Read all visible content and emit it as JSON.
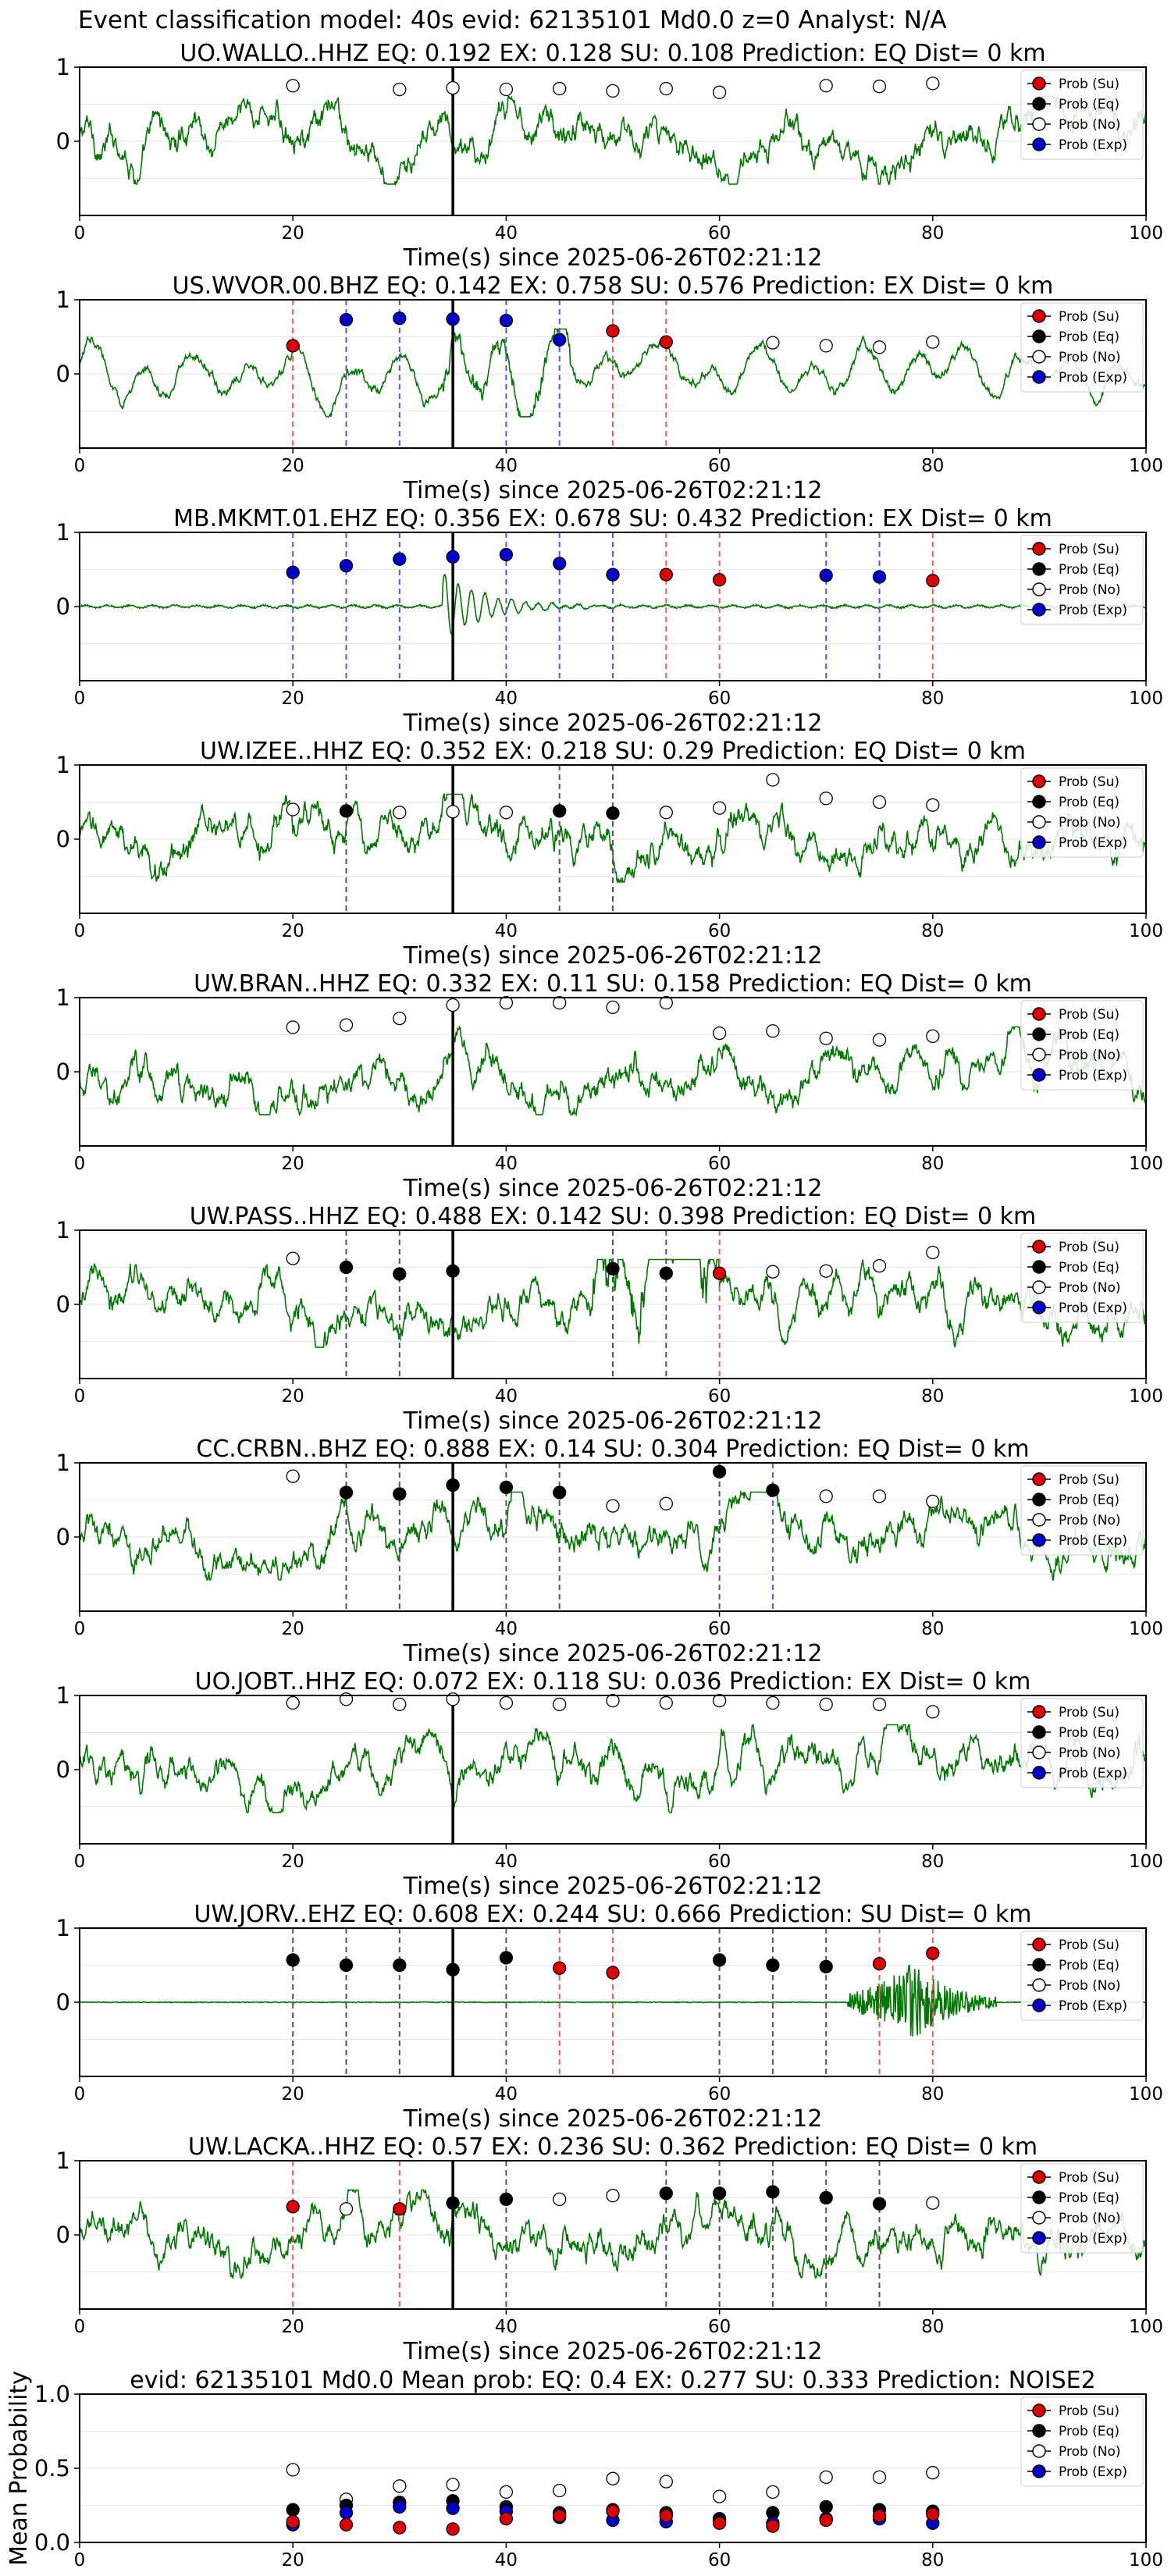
{
  "suptitle": "Event classification model: 40s evid: 62135101 Md0.0 z=0 Analyst: N/A",
  "legend_labels": [
    "Prob (Su)",
    "Prob (Eq)",
    "Prob (No)",
    "Prob (Exp)"
  ],
  "colors": {
    "su": "#dd0000",
    "eq": "#000000",
    "no": "#ffffff",
    "exp": "#0000cc",
    "waveform": "#007700",
    "vline_su": "#ff5555",
    "vline_exp": "#5555ff",
    "vline_eq": "#555555"
  },
  "xlabel": "Time(s) since 2025-06-26T02:21:12",
  "chart_data": [
    {
      "type": "line",
      "station": "UO.WALLO..HHZ",
      "title": "UO.WALLO..HHZ   EQ: 0.192  EX: 0.128  SU: 0.108   Prediction: EQ    Dist= 0 km",
      "xlabel": "Time(s) since 2025-06-26T02:21:12",
      "xlim": [
        0,
        100
      ],
      "ylim": [
        -1,
        1
      ],
      "xticks": [
        0,
        20,
        40,
        60,
        80,
        100
      ],
      "yticks": [
        0,
        1
      ],
      "arrival_s": 35,
      "waveform": "noise",
      "points": [
        [
          20,
          0.75,
          "no"
        ],
        [
          30,
          0.7,
          "no"
        ],
        [
          35,
          0.72,
          "no"
        ],
        [
          40,
          0.7,
          "no"
        ],
        [
          45,
          0.71,
          "no"
        ],
        [
          50,
          0.68,
          "no"
        ],
        [
          55,
          0.71,
          "no"
        ],
        [
          60,
          0.66,
          "no"
        ],
        [
          70,
          0.75,
          "no"
        ],
        [
          75,
          0.74,
          "no"
        ],
        [
          80,
          0.78,
          "no"
        ]
      ],
      "vlines": []
    },
    {
      "type": "line",
      "station": "US.WVOR.00.BHZ",
      "title": "US.WVOR.00.BHZ   EQ: 0.142  EX: 0.758  SU: 0.576   Prediction: EX    Dist= 0 km",
      "xlabel": "Time(s) since 2025-06-26T02:21:12",
      "xlim": [
        0,
        100
      ],
      "ylim": [
        -1,
        1
      ],
      "xticks": [
        0,
        20,
        40,
        60,
        80,
        100
      ],
      "yticks": [
        0,
        1
      ],
      "arrival_s": 35,
      "waveform": "smooth",
      "points": [
        [
          20,
          0.38,
          "su"
        ],
        [
          25,
          0.73,
          "exp"
        ],
        [
          30,
          0.75,
          "exp"
        ],
        [
          35,
          0.74,
          "exp"
        ],
        [
          40,
          0.72,
          "exp"
        ],
        [
          45,
          0.46,
          "exp"
        ],
        [
          50,
          0.58,
          "su"
        ],
        [
          55,
          0.43,
          "su"
        ],
        [
          65,
          0.42,
          "no"
        ],
        [
          70,
          0.38,
          "no"
        ],
        [
          75,
          0.36,
          "no"
        ],
        [
          80,
          0.43,
          "no"
        ]
      ],
      "vlines": [
        [
          20,
          "su"
        ],
        [
          25,
          "exp"
        ],
        [
          30,
          "exp"
        ],
        [
          35,
          "exp"
        ],
        [
          40,
          "exp"
        ],
        [
          45,
          "exp"
        ],
        [
          50,
          "su"
        ],
        [
          55,
          "su"
        ]
      ]
    },
    {
      "type": "line",
      "station": "MB.MKMT.01.EHZ",
      "title": "MB.MKMT.01.EHZ   EQ: 0.356  EX: 0.678  SU: 0.432   Prediction: EX    Dist= 0 km",
      "xlabel": "Time(s) since 2025-06-26T02:21:12",
      "xlim": [
        0,
        100
      ],
      "ylim": [
        -1,
        1
      ],
      "xticks": [
        0,
        20,
        40,
        60,
        80,
        100
      ],
      "yticks": [
        0,
        1
      ],
      "arrival_s": 35,
      "waveform": "quiet",
      "points": [
        [
          20,
          0.46,
          "exp"
        ],
        [
          25,
          0.55,
          "exp"
        ],
        [
          30,
          0.64,
          "exp"
        ],
        [
          35,
          0.67,
          "exp"
        ],
        [
          40,
          0.7,
          "exp"
        ],
        [
          45,
          0.58,
          "exp"
        ],
        [
          50,
          0.43,
          "exp"
        ],
        [
          55,
          0.43,
          "su"
        ],
        [
          60,
          0.36,
          "su"
        ],
        [
          70,
          0.42,
          "exp"
        ],
        [
          75,
          0.4,
          "exp"
        ],
        [
          80,
          0.35,
          "su"
        ]
      ],
      "vlines": [
        [
          20,
          "exp"
        ],
        [
          25,
          "exp"
        ],
        [
          30,
          "exp"
        ],
        [
          35,
          "exp"
        ],
        [
          40,
          "exp"
        ],
        [
          45,
          "exp"
        ],
        [
          50,
          "exp"
        ],
        [
          55,
          "su"
        ],
        [
          60,
          "su"
        ],
        [
          70,
          "exp"
        ],
        [
          75,
          "exp"
        ],
        [
          80,
          "su"
        ]
      ]
    },
    {
      "type": "line",
      "station": "UW.IZEE..HHZ",
      "title": "UW.IZEE..HHZ   EQ: 0.352  EX: 0.218  SU: 0.29   Prediction: EQ    Dist= 0 km",
      "xlabel": "Time(s) since 2025-06-26T02:21:12",
      "xlim": [
        0,
        100
      ],
      "ylim": [
        -1,
        1
      ],
      "xticks": [
        0,
        20,
        40,
        60,
        80,
        100
      ],
      "yticks": [
        0,
        1
      ],
      "arrival_s": 35,
      "waveform": "noise",
      "points": [
        [
          20,
          0.4,
          "no"
        ],
        [
          25,
          0.38,
          "eq"
        ],
        [
          30,
          0.36,
          "no"
        ],
        [
          35,
          0.37,
          "no"
        ],
        [
          40,
          0.36,
          "no"
        ],
        [
          45,
          0.38,
          "eq"
        ],
        [
          50,
          0.35,
          "eq"
        ],
        [
          55,
          0.36,
          "no"
        ],
        [
          60,
          0.42,
          "no"
        ],
        [
          65,
          0.8,
          "no"
        ],
        [
          70,
          0.55,
          "no"
        ],
        [
          75,
          0.5,
          "no"
        ],
        [
          80,
          0.46,
          "no"
        ]
      ],
      "vlines": [
        [
          25,
          "eq"
        ],
        [
          45,
          "eq"
        ],
        [
          50,
          "eq"
        ]
      ]
    },
    {
      "type": "line",
      "station": "UW.BRAN..HHZ",
      "title": "UW.BRAN..HHZ   EQ: 0.332  EX: 0.11  SU: 0.158   Prediction: EQ    Dist= 0 km",
      "xlabel": "Time(s) since 2025-06-26T02:21:12",
      "xlim": [
        0,
        100
      ],
      "ylim": [
        -1,
        1
      ],
      "xticks": [
        0,
        20,
        40,
        60,
        80,
        100
      ],
      "yticks": [
        0,
        1
      ],
      "arrival_s": 35,
      "waveform": "noise",
      "points": [
        [
          20,
          0.6,
          "no"
        ],
        [
          25,
          0.63,
          "no"
        ],
        [
          30,
          0.72,
          "no"
        ],
        [
          35,
          0.9,
          "no"
        ],
        [
          40,
          0.93,
          "no"
        ],
        [
          45,
          0.93,
          "no"
        ],
        [
          50,
          0.87,
          "no"
        ],
        [
          55,
          0.93,
          "no"
        ],
        [
          60,
          0.52,
          "no"
        ],
        [
          65,
          0.55,
          "no"
        ],
        [
          70,
          0.45,
          "no"
        ],
        [
          75,
          0.43,
          "no"
        ],
        [
          80,
          0.48,
          "no"
        ]
      ],
      "vlines": []
    },
    {
      "type": "line",
      "station": "UW.PASS..HHZ",
      "title": "UW.PASS..HHZ   EQ: 0.488  EX: 0.142  SU: 0.398   Prediction: EQ    Dist= 0 km",
      "xlabel": "Time(s) since 2025-06-26T02:21:12",
      "xlim": [
        0,
        100
      ],
      "ylim": [
        -1,
        1
      ],
      "xticks": [
        0,
        20,
        40,
        60,
        80,
        100
      ],
      "yticks": [
        0,
        1
      ],
      "arrival_s": 35,
      "waveform": "noise",
      "points": [
        [
          20,
          0.62,
          "no"
        ],
        [
          25,
          0.5,
          "eq"
        ],
        [
          30,
          0.41,
          "eq"
        ],
        [
          35,
          0.45,
          "eq"
        ],
        [
          50,
          0.48,
          "eq"
        ],
        [
          55,
          0.42,
          "eq"
        ],
        [
          60,
          0.42,
          "su"
        ],
        [
          65,
          0.44,
          "no"
        ],
        [
          70,
          0.45,
          "no"
        ],
        [
          75,
          0.52,
          "no"
        ],
        [
          80,
          0.7,
          "no"
        ]
      ],
      "vlines": [
        [
          25,
          "eq"
        ],
        [
          30,
          "eq"
        ],
        [
          50,
          "eq"
        ],
        [
          55,
          "eq"
        ],
        [
          60,
          "su"
        ]
      ]
    },
    {
      "type": "line",
      "station": "CC.CRBN..BHZ",
      "title": "CC.CRBN..BHZ   EQ: 0.888  EX: 0.14  SU: 0.304   Prediction: EQ    Dist= 0 km",
      "xlabel": "Time(s) since 2025-06-26T02:21:12",
      "xlim": [
        0,
        100
      ],
      "ylim": [
        -1,
        1
      ],
      "xticks": [
        0,
        20,
        40,
        60,
        80,
        100
      ],
      "yticks": [
        0,
        1
      ],
      "arrival_s": 35,
      "waveform": "noise",
      "points": [
        [
          20,
          0.82,
          "no"
        ],
        [
          25,
          0.6,
          "eq"
        ],
        [
          30,
          0.58,
          "eq"
        ],
        [
          35,
          0.7,
          "eq"
        ],
        [
          40,
          0.67,
          "eq"
        ],
        [
          45,
          0.6,
          "eq"
        ],
        [
          50,
          0.42,
          "no"
        ],
        [
          55,
          0.45,
          "no"
        ],
        [
          60,
          0.88,
          "eq"
        ],
        [
          65,
          0.63,
          "eq"
        ],
        [
          70,
          0.55,
          "no"
        ],
        [
          75,
          0.55,
          "no"
        ],
        [
          80,
          0.48,
          "no"
        ]
      ],
      "vlines": [
        [
          25,
          "eq"
        ],
        [
          30,
          "eq"
        ],
        [
          35,
          "eq"
        ],
        [
          40,
          "eq"
        ],
        [
          45,
          "eq"
        ],
        [
          60,
          "eq"
        ],
        [
          65,
          "exp"
        ]
      ]
    },
    {
      "type": "line",
      "station": "UO.JOBT..HHZ",
      "title": "UO.JOBT..HHZ   EQ: 0.072  EX: 0.118  SU: 0.036   Prediction: EX    Dist= 0 km",
      "xlabel": "Time(s) since 2025-06-26T02:21:12",
      "xlim": [
        0,
        100
      ],
      "ylim": [
        -1,
        1
      ],
      "xticks": [
        0,
        20,
        40,
        60,
        80,
        100
      ],
      "yticks": [
        0,
        1
      ],
      "arrival_s": 35,
      "waveform": "noise",
      "points": [
        [
          20,
          0.9,
          "no"
        ],
        [
          25,
          0.95,
          "no"
        ],
        [
          30,
          0.88,
          "no"
        ],
        [
          35,
          0.95,
          "no"
        ],
        [
          40,
          0.9,
          "no"
        ],
        [
          45,
          0.88,
          "no"
        ],
        [
          50,
          0.93,
          "no"
        ],
        [
          55,
          0.9,
          "no"
        ],
        [
          60,
          0.93,
          "no"
        ],
        [
          65,
          0.9,
          "no"
        ],
        [
          70,
          0.88,
          "no"
        ],
        [
          75,
          0.88,
          "no"
        ],
        [
          80,
          0.78,
          "no"
        ]
      ],
      "vlines": []
    },
    {
      "type": "line",
      "station": "UW.JORV..EHZ",
      "title": "UW.JORV..EHZ   EQ: 0.608  EX: 0.244  SU: 0.666   Prediction: SU    Dist= 0 km",
      "xlabel": "Time(s) since 2025-06-26T02:21:12",
      "xlim": [
        0,
        100
      ],
      "ylim": [
        -1,
        1
      ],
      "xticks": [
        0,
        20,
        40,
        60,
        80,
        100
      ],
      "yticks": [
        0,
        1
      ],
      "arrival_s": 35,
      "waveform": "late_burst",
      "points": [
        [
          20,
          0.57,
          "eq"
        ],
        [
          25,
          0.5,
          "eq"
        ],
        [
          30,
          0.5,
          "eq"
        ],
        [
          35,
          0.44,
          "eq"
        ],
        [
          40,
          0.6,
          "eq"
        ],
        [
          45,
          0.46,
          "su"
        ],
        [
          50,
          0.4,
          "su"
        ],
        [
          60,
          0.57,
          "eq"
        ],
        [
          65,
          0.5,
          "eq"
        ],
        [
          70,
          0.48,
          "eq"
        ],
        [
          75,
          0.52,
          "su"
        ],
        [
          80,
          0.66,
          "su"
        ]
      ],
      "vlines": [
        [
          20,
          "eq"
        ],
        [
          25,
          "eq"
        ],
        [
          30,
          "eq"
        ],
        [
          35,
          "eq"
        ],
        [
          40,
          "eq"
        ],
        [
          45,
          "su"
        ],
        [
          50,
          "su"
        ],
        [
          60,
          "eq"
        ],
        [
          65,
          "eq"
        ],
        [
          70,
          "eq"
        ],
        [
          75,
          "su"
        ],
        [
          80,
          "su"
        ]
      ]
    },
    {
      "type": "line",
      "station": "UW.LACKA..HHZ",
      "title": "UW.LACKA..HHZ   EQ: 0.57  EX: 0.236  SU: 0.362   Prediction: EQ    Dist= 0 km",
      "xlabel": "Time(s) since 2025-06-26T02:21:12",
      "xlim": [
        0,
        100
      ],
      "ylim": [
        -1,
        1
      ],
      "xticks": [
        0,
        20,
        40,
        60,
        80,
        100
      ],
      "yticks": [
        0,
        1
      ],
      "arrival_s": 35,
      "waveform": "noise",
      "points": [
        [
          20,
          0.38,
          "su"
        ],
        [
          25,
          0.35,
          "no"
        ],
        [
          30,
          0.35,
          "su"
        ],
        [
          35,
          0.43,
          "eq"
        ],
        [
          40,
          0.48,
          "eq"
        ],
        [
          45,
          0.48,
          "no"
        ],
        [
          50,
          0.53,
          "no"
        ],
        [
          55,
          0.56,
          "eq"
        ],
        [
          60,
          0.56,
          "eq"
        ],
        [
          65,
          0.58,
          "eq"
        ],
        [
          70,
          0.5,
          "eq"
        ],
        [
          75,
          0.42,
          "eq"
        ],
        [
          80,
          0.43,
          "no"
        ]
      ],
      "vlines": [
        [
          20,
          "su"
        ],
        [
          30,
          "su"
        ],
        [
          40,
          "eq"
        ],
        [
          55,
          "eq"
        ],
        [
          60,
          "eq"
        ],
        [
          65,
          "eq"
        ],
        [
          70,
          "eq"
        ],
        [
          75,
          "eq"
        ]
      ]
    },
    {
      "type": "scatter",
      "station": "mean",
      "title": "evid: 62135101  Md0.0   Mean prob:   EQ: 0.4  EX: 0.277  SU: 0.333   Prediction: NOISE2",
      "ylabel": "Mean Probability",
      "xlim": [
        0,
        100
      ],
      "ylim": [
        0,
        1
      ],
      "xticks": [
        0,
        20,
        40,
        60,
        80,
        100
      ],
      "yticks": [
        0.0,
        0.5,
        1.0
      ],
      "ytick_labels": [
        "0.0",
        "0.5",
        "1.0"
      ],
      "series": [
        {
          "name": "Prob (No)",
          "key": "no",
          "x": [
            20,
            25,
            30,
            35,
            40,
            45,
            50,
            55,
            60,
            65,
            70,
            75,
            80
          ],
          "y": [
            0.49,
            0.29,
            0.38,
            0.39,
            0.34,
            0.35,
            0.43,
            0.41,
            0.31,
            0.34,
            0.44,
            0.44,
            0.47
          ]
        },
        {
          "name": "Prob (Eq)",
          "key": "eq",
          "x": [
            20,
            25,
            30,
            35,
            40,
            45,
            50,
            55,
            60,
            65,
            70,
            75,
            80
          ],
          "y": [
            0.22,
            0.25,
            0.27,
            0.28,
            0.24,
            0.2,
            0.22,
            0.2,
            0.16,
            0.2,
            0.24,
            0.22,
            0.21
          ]
        },
        {
          "name": "Prob (Exp)",
          "key": "exp",
          "x": [
            20,
            25,
            30,
            35,
            40,
            45,
            50,
            55,
            60,
            65,
            70,
            75,
            80
          ],
          "y": [
            0.12,
            0.2,
            0.24,
            0.23,
            0.21,
            0.17,
            0.15,
            0.14,
            0.14,
            0.13,
            0.16,
            0.16,
            0.13
          ]
        },
        {
          "name": "Prob (Su)",
          "key": "su",
          "x": [
            20,
            25,
            30,
            35,
            40,
            45,
            50,
            55,
            60,
            65,
            70,
            75,
            80
          ],
          "y": [
            0.14,
            0.12,
            0.1,
            0.09,
            0.16,
            0.18,
            0.21,
            0.18,
            0.13,
            0.11,
            0.15,
            0.18,
            0.19
          ]
        }
      ]
    }
  ]
}
